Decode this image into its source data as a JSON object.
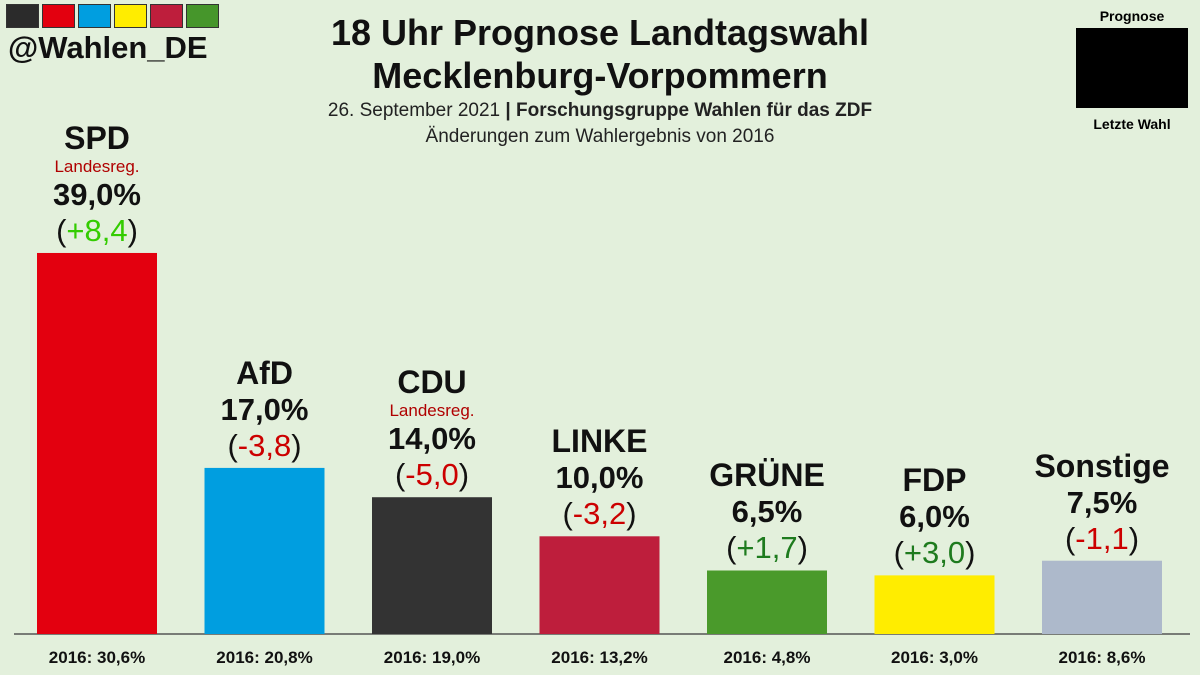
{
  "header": {
    "handle": "@Wahlen_DE",
    "title_line1": "18 Uhr Prognose Landtagswahl",
    "title_line2": "Mecklenburg-Vorpommern",
    "date": "26. September 2021",
    "separator": "|",
    "source": "Forschungsgruppe Wahlen für das ZDF",
    "subtitle": "Änderungen zum Wahlergebnis von 2016",
    "strip_colors": [
      "#2b2b2b",
      "#e3000f",
      "#009ee0",
      "#ffed00",
      "#be1e3c",
      "#46962b"
    ]
  },
  "legend": {
    "top_label": "Prognose",
    "bottom_label": "Letzte Wahl",
    "color": "#000000"
  },
  "chart_data": {
    "type": "bar",
    "title": "18 Uhr Prognose Landtagswahl Mecklenburg-Vorpommern",
    "ylim": [
      0,
      40
    ],
    "categories": [
      "SPD",
      "AfD",
      "CDU",
      "LINKE",
      "GRÜNE",
      "FDP",
      "Sonstige"
    ],
    "values": [
      39.0,
      17.0,
      14.0,
      10.0,
      6.5,
      6.0,
      7.5
    ],
    "value_labels": [
      "39,0%",
      "17,0%",
      "14,0%",
      "10,0%",
      "6,5%",
      "6,0%",
      "7,5%"
    ],
    "changes": [
      8.4,
      -3.8,
      -5.0,
      -3.2,
      1.7,
      3.0,
      -1.1
    ],
    "change_labels": [
      "+8,4",
      "-3,8",
      "-5,0",
      "-3,2",
      "+1,7",
      "+3,0",
      "-1,1"
    ],
    "change_colors": [
      "#33cc00",
      "#cc0000",
      "#cc0000",
      "#cc0000",
      "#1e7b1e",
      "#1e7b1e",
      "#cc0000"
    ],
    "notes": [
      "Landesreg.",
      "",
      "Landesreg.",
      "",
      "",
      "",
      ""
    ],
    "previous_labels": [
      "2016: 30,6%",
      "2016: 20,8%",
      "2016: 19,0%",
      "2016: 13,2%",
      "2016: 4,8%",
      "2016: 3,0%",
      "2016: 8,6%"
    ],
    "colors": [
      "#e3000f",
      "#009ee0",
      "#333333",
      "#be1e3c",
      "#4a9a2b",
      "#ffed00",
      "#adb9cb"
    ],
    "paren_open": "(",
    "paren_close": ")"
  }
}
